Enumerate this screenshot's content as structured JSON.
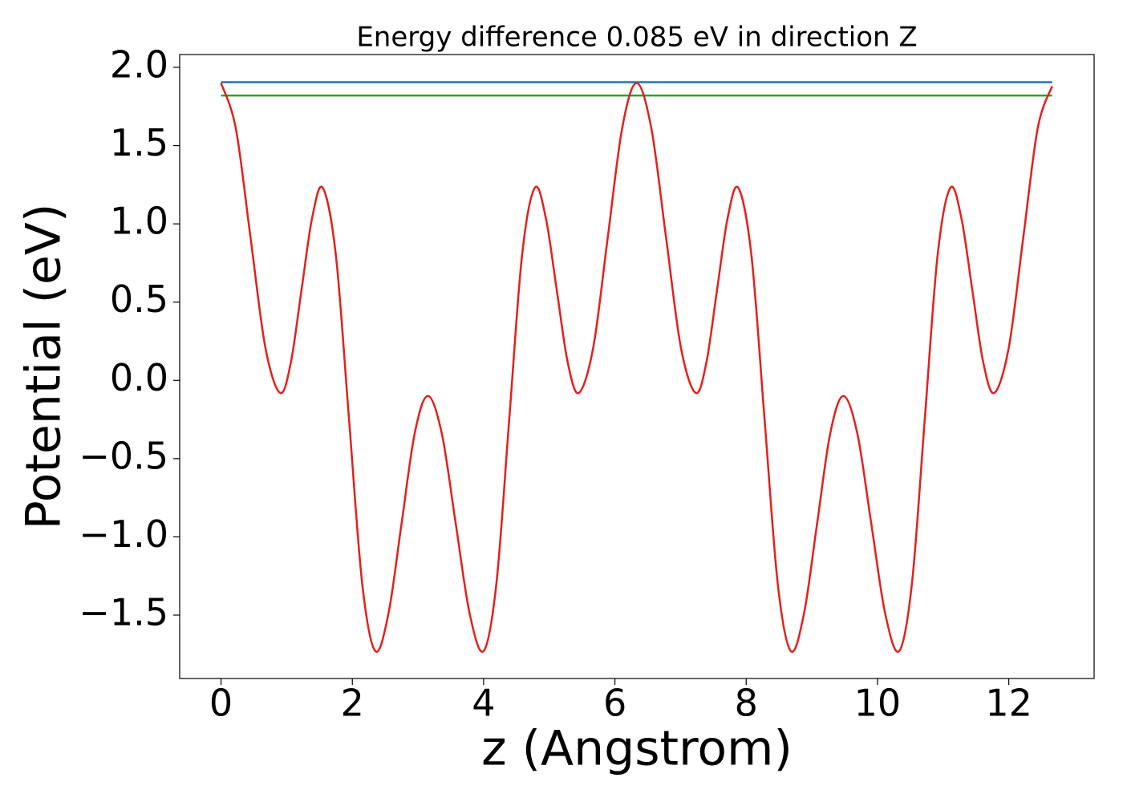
{
  "chart_data": {
    "type": "line",
    "title": "Energy difference 0.085 eV in direction Z",
    "xlabel": "z (Angstrom)",
    "ylabel": "Potential (eV)",
    "xlim": [
      -0.63,
      13.3
    ],
    "ylim": [
      -1.905,
      2.082
    ],
    "xticks": [
      0,
      2,
      4,
      6,
      8,
      10,
      12
    ],
    "yticks": [
      {
        "value": -1.5,
        "label": "−1.5"
      },
      {
        "value": -1.0,
        "label": "−1.0"
      },
      {
        "value": -0.5,
        "label": "−0.5"
      },
      {
        "value": 0.0,
        "label": "0.0"
      },
      {
        "value": 0.5,
        "label": "0.5"
      },
      {
        "value": 1.0,
        "label": "1.0"
      },
      {
        "value": 1.5,
        "label": "1.5"
      },
      {
        "value": 2.0,
        "label": "2.0"
      }
    ],
    "series": [
      {
        "color": "#1f77b4",
        "x": [
          0,
          12.66
        ],
        "values": [
          1.905,
          1.905
        ]
      },
      {
        "color": "#2ca02c",
        "x": [
          0,
          12.66
        ],
        "values": [
          1.82,
          1.82
        ]
      },
      {
        "color": "#e3201c",
        "x": [
          0,
          0.225,
          0.45,
          0.675,
          0.9,
          1.0625,
          1.225,
          1.3875,
          1.55,
          1.75,
          1.95,
          2.15,
          2.35,
          2.55,
          2.75,
          2.95,
          3.15,
          3.3625,
          3.575,
          3.7875,
          4.0,
          4.195,
          4.39,
          4.585,
          4.78,
          4.9475,
          5.115,
          5.2825,
          5.45,
          5.67,
          5.89,
          6.11,
          6.33,
          6.555,
          6.78,
          7.005,
          7.23,
          7.3925,
          7.555,
          7.7175,
          7.88,
          8.08,
          8.28,
          8.48,
          8.68,
          8.88,
          9.08,
          9.28,
          9.48,
          9.6925,
          9.905,
          10.1175,
          10.33,
          10.525,
          10.72,
          10.915,
          11.11,
          11.2775,
          11.445,
          11.6125,
          11.78,
          12.0,
          12.22,
          12.44,
          12.66
        ],
        "values": [
          1.9,
          1.61,
          0.91,
          0.21,
          -0.08,
          0.112,
          0.575,
          1.038,
          1.23,
          0.797,
          -0.25,
          -1.297,
          -1.73,
          -1.491,
          -0.915,
          -0.339,
          -0.1,
          -0.339,
          -0.915,
          -1.491,
          -1.73,
          -1.297,
          -0.25,
          0.797,
          1.23,
          1.038,
          0.575,
          0.112,
          -0.08,
          0.21,
          0.91,
          1.61,
          1.9,
          1.61,
          0.91,
          0.21,
          -0.08,
          0.112,
          0.575,
          1.038,
          1.23,
          0.797,
          -0.25,
          -1.297,
          -1.73,
          -1.491,
          -0.915,
          -0.339,
          -0.1,
          -0.339,
          -0.915,
          -1.491,
          -1.73,
          -1.297,
          -0.25,
          0.797,
          1.23,
          1.038,
          0.575,
          0.112,
          -0.08,
          0.21,
          0.91,
          1.61,
          1.88
        ]
      }
    ]
  }
}
